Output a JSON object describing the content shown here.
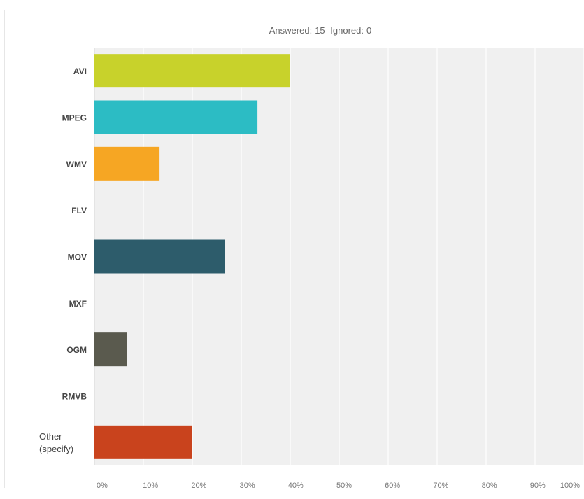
{
  "summary": {
    "answered_label": "Answered:",
    "answered_value": "15",
    "ignored_label": "Ignored:",
    "ignored_value": "0"
  },
  "chart_data": {
    "type": "bar",
    "orientation": "horizontal",
    "categories": [
      "AVI",
      "MPEG",
      "WMV",
      "FLV",
      "MOV",
      "MXF",
      "OGM",
      "RMVB",
      "Other (specify)"
    ],
    "values": [
      40,
      33.3,
      13.3,
      0,
      26.7,
      0,
      6.7,
      0,
      20
    ],
    "colors": [
      "#c8d22b",
      "#2cbcc4",
      "#f6a623",
      "#999999",
      "#2d5c6b",
      "#999999",
      "#5a5a4e",
      "#999999",
      "#c9431d"
    ],
    "xlim": [
      0,
      100
    ],
    "xticks": [
      "0%",
      "10%",
      "20%",
      "30%",
      "40%",
      "50%",
      "60%",
      "70%",
      "80%",
      "90%",
      "100%"
    ],
    "grid": true,
    "plot_background": "#f0f0f0"
  }
}
